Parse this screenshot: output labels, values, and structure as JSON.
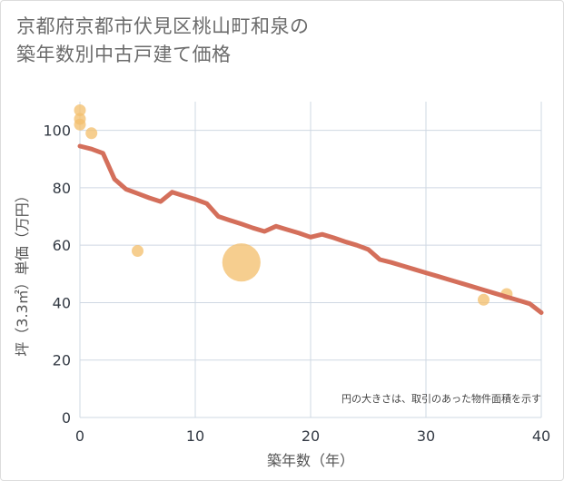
{
  "chart_data": {
    "type": "scatter+line",
    "title": [
      "京都府京都市伏見区桃山町和泉の",
      "築年数別中古戸建て価格"
    ],
    "xlabel": "築年数（年）",
    "ylabel": "坪（3.3㎡）単価（万円）",
    "xlim": [
      0,
      40
    ],
    "ylim": [
      0,
      110
    ],
    "xticks": [
      0,
      10,
      20,
      30,
      40
    ],
    "yticks": [
      0,
      20,
      40,
      60,
      80,
      100
    ],
    "grid": true,
    "note": "円の大きさは、取引のあった物件面積を示す",
    "colors": {
      "line": "#d46f5b",
      "bubble": "#f4c06f",
      "grid": "#cfd8e3"
    },
    "series": [
      {
        "name": "trend",
        "kind": "line",
        "x": [
          0,
          1,
          2,
          3,
          4,
          5,
          6,
          7,
          8,
          9,
          10,
          11,
          12,
          13,
          14,
          15,
          16,
          17,
          18,
          19,
          20,
          21,
          22,
          23,
          24,
          25,
          26,
          27,
          28,
          29,
          30,
          31,
          32,
          33,
          34,
          35,
          36,
          37,
          38,
          39,
          40
        ],
        "y": [
          94.5,
          93.5,
          92,
          83,
          79.5,
          78,
          76.5,
          75.2,
          78.5,
          77.2,
          76,
          74.5,
          70,
          68.7,
          67.4,
          66,
          64.8,
          66.6,
          65.4,
          64.2,
          62.8,
          63.8,
          62.6,
          61.2,
          60,
          58.5,
          55,
          54,
          52.8,
          51.6,
          50.4,
          49.2,
          48,
          46.8,
          45.6,
          44.4,
          43.2,
          42,
          40.8,
          39.6,
          36.5
        ]
      },
      {
        "name": "transactions",
        "kind": "bubble",
        "points": [
          {
            "x": 0,
            "y": 107,
            "size": 1
          },
          {
            "x": 0,
            "y": 104,
            "size": 1
          },
          {
            "x": 0,
            "y": 102,
            "size": 1
          },
          {
            "x": 1,
            "y": 99,
            "size": 1
          },
          {
            "x": 5,
            "y": 58,
            "size": 1
          },
          {
            "x": 14,
            "y": 54,
            "size": 5
          },
          {
            "x": 35,
            "y": 41,
            "size": 1
          },
          {
            "x": 37,
            "y": 43,
            "size": 1
          }
        ]
      }
    ]
  }
}
